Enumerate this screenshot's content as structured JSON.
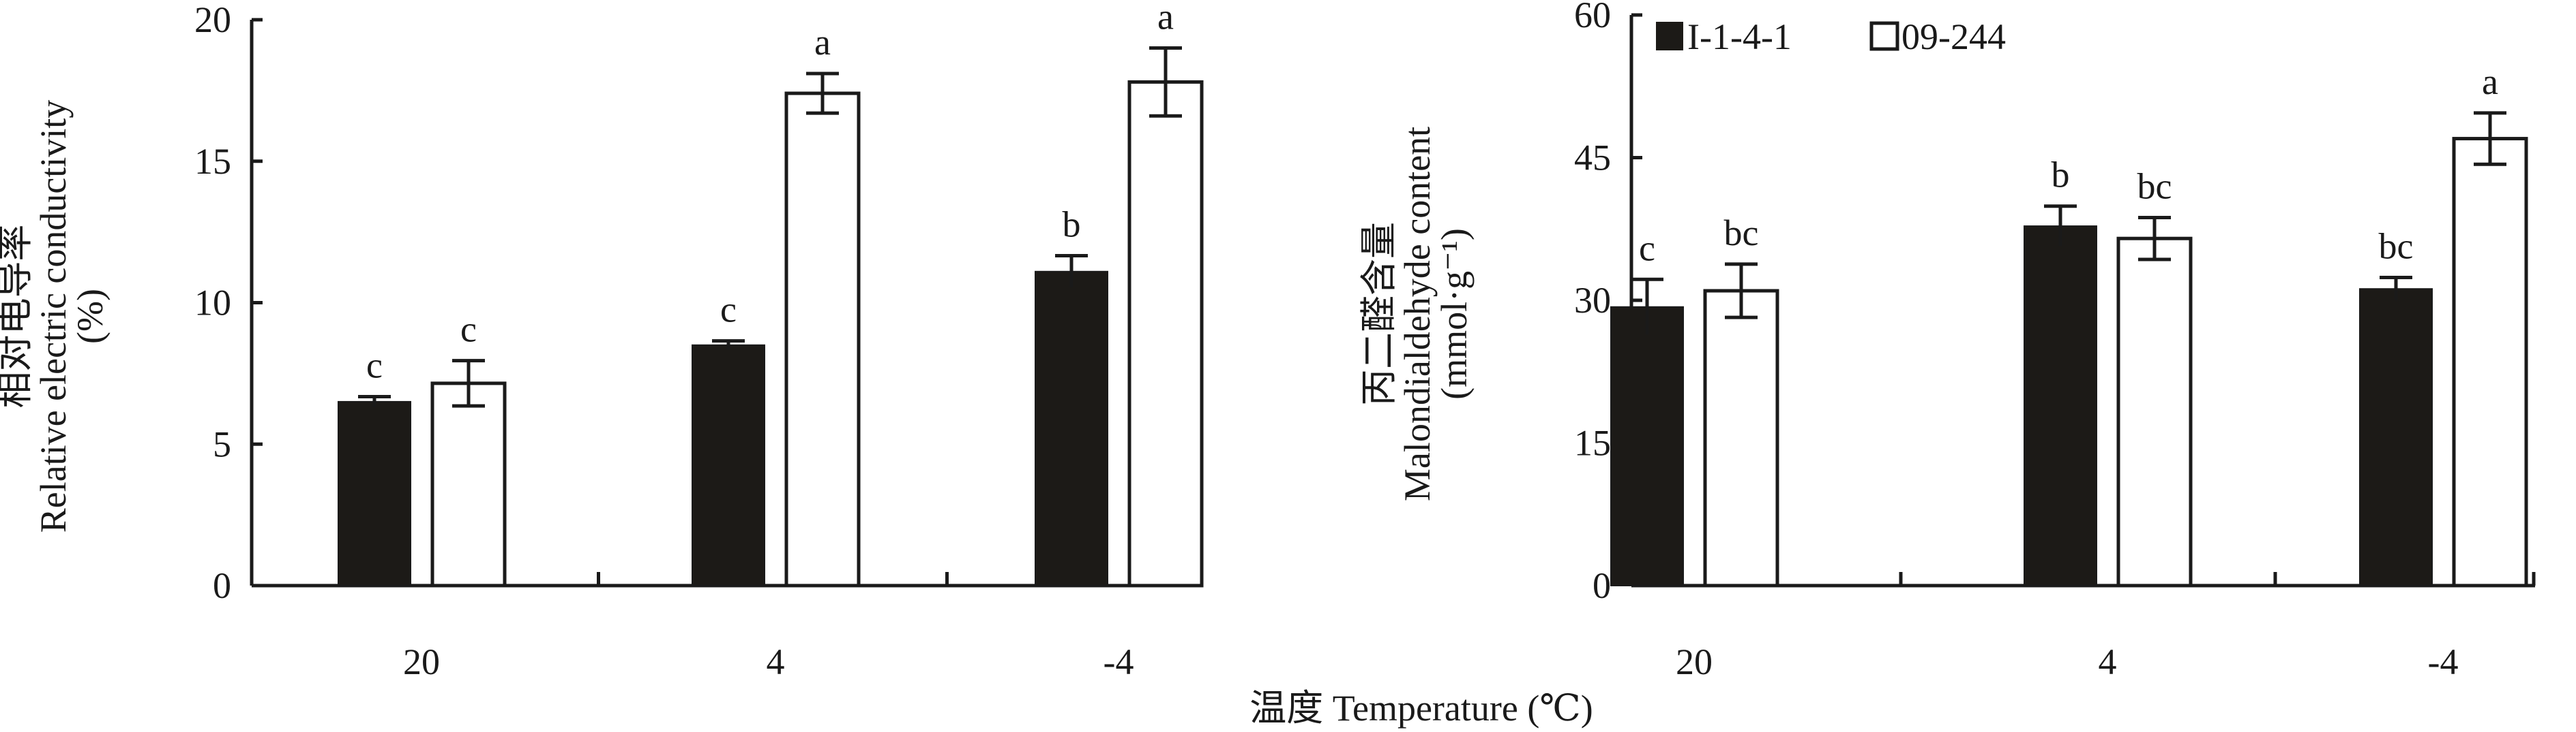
{
  "chart_data": [
    {
      "type": "bar",
      "categories": [
        "20",
        "4",
        "-4"
      ],
      "ylabel_cn": "相对电导率",
      "ylabel": "Relative electric conductivity",
      "yunit": "(%)",
      "ylim": [
        0,
        20
      ],
      "yticks": [
        "0",
        "5",
        "10",
        "15",
        "20"
      ],
      "series": [
        {
          "name": "I-1-4-1",
          "color": "#1c1a17",
          "values": [
            6.5,
            8.5,
            11.1
          ],
          "errors": [
            0.18,
            0.15,
            0.56
          ],
          "letters": [
            "c",
            "c",
            "b"
          ]
        },
        {
          "name": "09-244",
          "color": "#ffffff",
          "values": [
            7.15,
            17.4,
            17.8
          ],
          "errors": [
            0.8,
            0.7,
            1.2
          ],
          "letters": [
            "c",
            "a",
            "a"
          ]
        }
      ]
    },
    {
      "type": "bar",
      "categories": [
        "20",
        "4",
        "-4"
      ],
      "ylabel_cn": "丙二醛含量",
      "ylabel": "Malondialdehyde content",
      "yunit": "(mmol·g⁻¹)",
      "ylim": [
        0,
        60
      ],
      "yticks": [
        "0",
        "15",
        "30",
        "45",
        "60"
      ],
      "legend_position": "top-left",
      "series": [
        {
          "name": "I-1-4-1",
          "color": "#1c1a17",
          "values": [
            29.3,
            37.8,
            31.2
          ],
          "errors": [
            2.9,
            2.1,
            1.2
          ],
          "letters": [
            "c",
            "b",
            "bc"
          ]
        },
        {
          "name": "09-244",
          "color": "#ffffff",
          "values": [
            31.0,
            36.5,
            47.0
          ],
          "errors": [
            2.8,
            2.2,
            2.7
          ],
          "letters": [
            "bc",
            "bc",
            "a"
          ]
        }
      ]
    }
  ],
  "xlabel": "温度 Temperature (℃)"
}
